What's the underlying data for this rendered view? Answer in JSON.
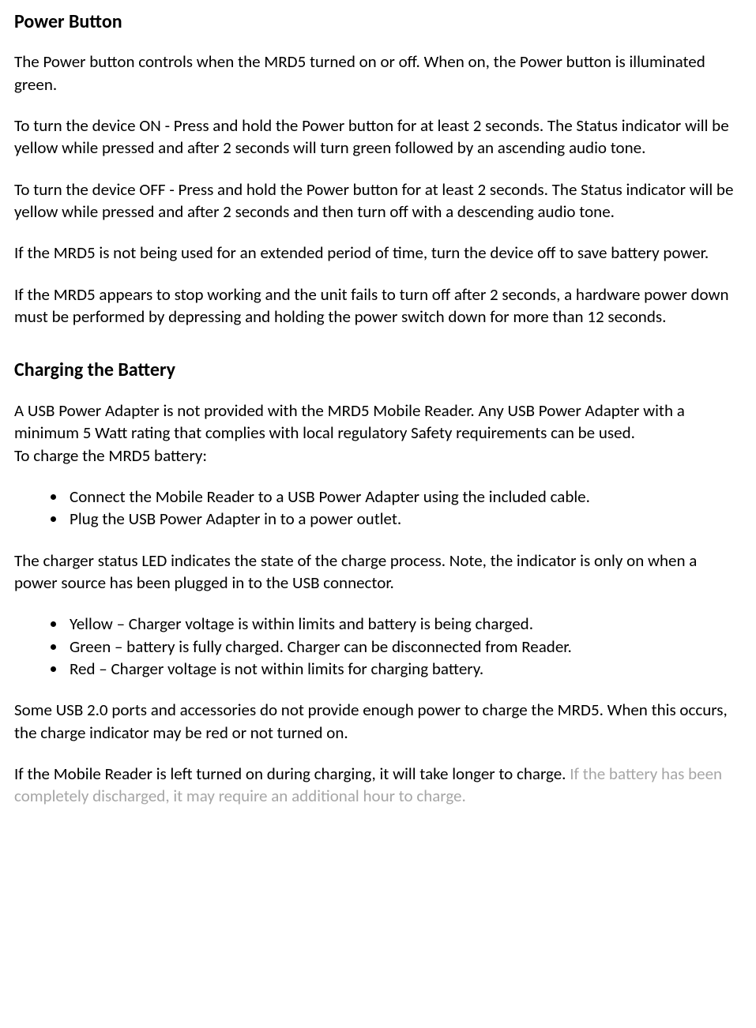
{
  "section1": {
    "heading": "Power Button",
    "p1": "The Power button controls when the MRD5 turned on or off.  When on, the Power button is illuminated green.",
    "p2": "To turn the device ON - Press and hold the Power button for at least 2 seconds.  The Status indicator will be yellow while pressed and after 2 seconds will turn green followed by an ascending audio tone.",
    "p3": "To turn the device OFF - Press and hold the Power button for at least 2 seconds.  The Status indicator will be yellow while pressed and after 2 seconds and then turn off with a descending audio tone.",
    "p4": "If the MRD5 is not being used for an extended period of time, turn the device off to save battery power.",
    "p5": "If the MRD5 appears to stop working and the unit fails to turn off after 2 seconds, a hardware power down must be performed by depressing and holding the power switch down for more than 12 seconds."
  },
  "section2": {
    "heading": "Charging the Battery",
    "p1": "A USB Power Adapter is not provided with the MRD5 Mobile Reader.  Any USB Power Adapter with a minimum 5 Watt rating that complies with local regulatory Safety requirements can be used.",
    "p1b": "To charge the MRD5 battery:",
    "list1": [
      "Connect the Mobile Reader to a USB Power Adapter using the included cable.",
      "Plug the USB Power Adapter in to a power outlet."
    ],
    "p2": "The charger status LED indicates the state of the charge process.  Note, the indicator is only on when a power source has been plugged in to the USB connector.",
    "list2": [
      "Yellow – Charger voltage is within limits and battery is being charged.",
      "Green – battery is fully charged.  Charger can be disconnected from Reader.",
      "Red – Charger voltage is not within limits for charging battery."
    ],
    "p3": "Some USB 2.0 ports and accessories do not provide enough power to charge the MRD5. When this occurs, the charge indicator may be red or not turned on.",
    "p4_black": "If the Mobile Reader is left turned on during charging, it will take longer to charge.  ",
    "p4_faded": "If the battery has been completely discharged, it may require an additional hour to charge."
  }
}
